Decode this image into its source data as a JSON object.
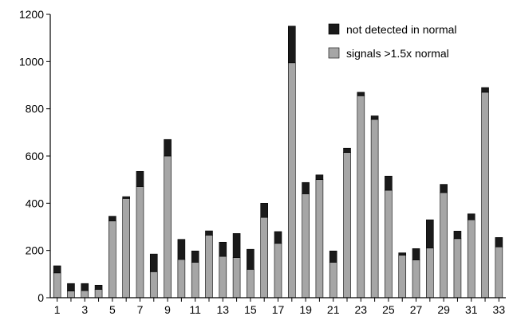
{
  "chart_data": {
    "type": "bar",
    "stacked": true,
    "categories": [
      "1",
      "2",
      "3",
      "4",
      "5",
      "6",
      "7",
      "8",
      "9",
      "10",
      "11",
      "12",
      "13",
      "14",
      "15",
      "16",
      "17",
      "18",
      "19",
      "20",
      "21",
      "22",
      "23",
      "24",
      "25",
      "26",
      "27",
      "28",
      "29",
      "30",
      "31",
      "32",
      "33"
    ],
    "x_tick_labels": [
      "1",
      "3",
      "5",
      "7",
      "9",
      "11",
      "13",
      "15",
      "17",
      "19",
      "21",
      "23",
      "25",
      "27",
      "29",
      "31",
      "33"
    ],
    "series": [
      {
        "name": "signals >1.5x normal",
        "color": "#a6a6a6",
        "values": [
          105,
          28,
          30,
          35,
          325,
          420,
          470,
          110,
          600,
          162,
          150,
          265,
          175,
          170,
          120,
          340,
          230,
          995,
          440,
          500,
          150,
          615,
          855,
          755,
          455,
          180,
          160,
          210,
          445,
          250,
          330,
          870,
          215
        ]
      },
      {
        "name": "not detected in normal",
        "color": "#1a1a1a",
        "values": [
          30,
          32,
          30,
          18,
          20,
          8,
          65,
          75,
          70,
          85,
          48,
          18,
          60,
          102,
          85,
          60,
          50,
          155,
          48,
          20,
          48,
          18,
          15,
          15,
          60,
          10,
          48,
          120,
          35,
          32,
          25,
          20,
          40
        ]
      }
    ],
    "y_ticks": [
      0,
      200,
      400,
      600,
      800,
      1000,
      1200
    ],
    "ylim": [
      0,
      1200
    ],
    "title": "",
    "xlabel": "",
    "ylabel": "",
    "legend": {
      "placement": "top-right",
      "order": [
        "not detected in normal",
        "signals >1.5x normal"
      ]
    },
    "grid": false
  }
}
